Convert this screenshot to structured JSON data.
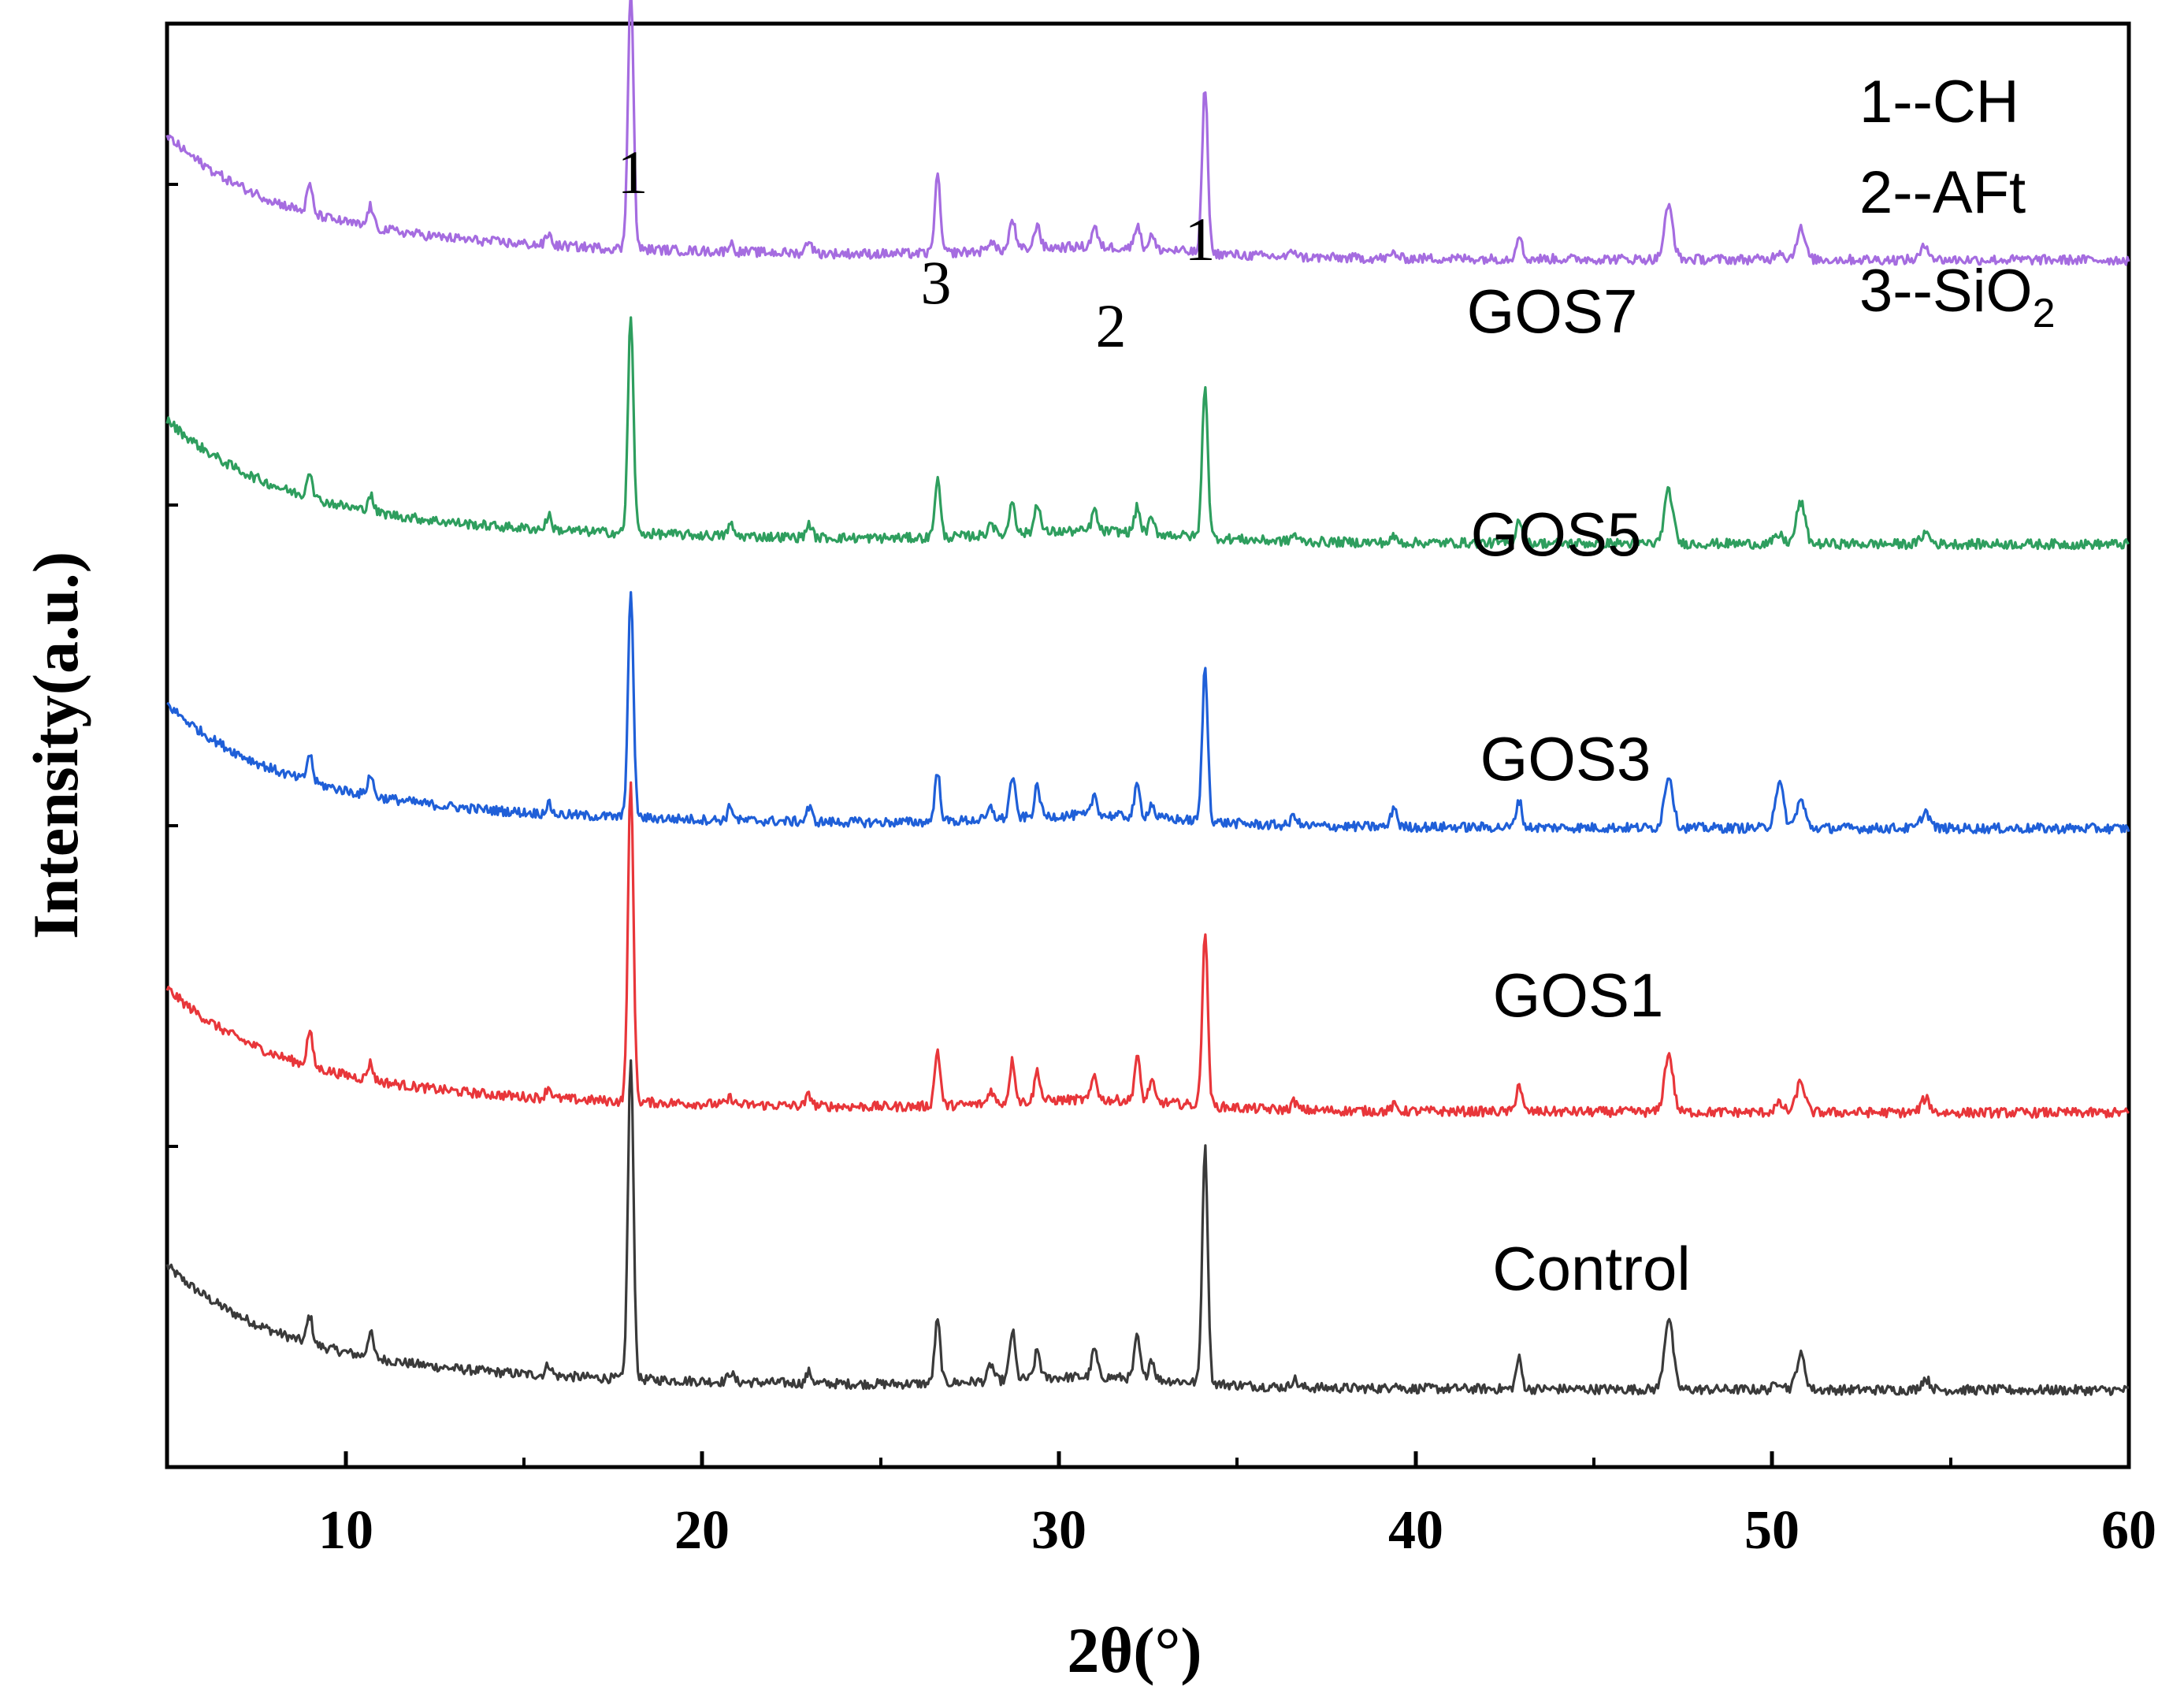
{
  "chart_data": {
    "type": "line",
    "title": "",
    "xlabel": "2θ(°)",
    "ylabel": "Intensity(a.u.)",
    "xlim": [
      5,
      60
    ],
    "xticks": [
      10,
      20,
      30,
      40,
      50,
      60
    ],
    "xtick_labels": [
      "10",
      "20",
      "30",
      "40",
      "50",
      "60"
    ],
    "y_ticks_shown": false,
    "peaks_2theta": [
      9.0,
      10.7,
      15.7,
      18.0,
      20.8,
      23.0,
      26.6,
      28.1,
      28.7,
      29.4,
      31.0,
      32.2,
      32.6,
      34.1,
      36.6,
      39.4,
      42.9,
      47.1,
      50.2,
      50.8,
      54.3
    ],
    "series": [
      {
        "name": "Control",
        "color": "#3a3a3a",
        "baseline": 0.0,
        "peak_heights": [
          0.2,
          0.18,
          0.08,
          2.3,
          0.07,
          0.08,
          0.45,
          0.12,
          0.35,
          0.2,
          0.2,
          0.3,
          0.15,
          1.7,
          0.06,
          0.04,
          0.22,
          0.52,
          0.06,
          0.25,
          0.08
        ]
      },
      {
        "name": "GOS1",
        "color": "#e8363a",
        "baseline": 2.0,
        "peak_heights": [
          0.25,
          0.12,
          0.08,
          2.3,
          0.05,
          0.08,
          0.4,
          0.1,
          0.3,
          0.22,
          0.18,
          0.32,
          0.15,
          1.25,
          0.06,
          0.04,
          0.2,
          0.42,
          0.06,
          0.22,
          0.1
        ]
      },
      {
        "name": "GOS3",
        "color": "#1f5fd8",
        "baseline": 4.05,
        "peak_heights": [
          0.2,
          0.15,
          0.07,
          1.6,
          0.1,
          0.1,
          0.35,
          0.08,
          0.3,
          0.22,
          0.15,
          0.22,
          0.1,
          1.1,
          0.08,
          0.15,
          0.2,
          0.38,
          0.32,
          0.2,
          0.12
        ]
      },
      {
        "name": "GOS5",
        "color": "#2e9e5e",
        "baseline": 6.1,
        "peak_heights": [
          0.2,
          0.12,
          0.1,
          1.55,
          0.08,
          0.1,
          0.42,
          0.1,
          0.25,
          0.22,
          0.15,
          0.18,
          0.1,
          1.1,
          0.05,
          0.04,
          0.18,
          0.38,
          0.06,
          0.3,
          0.08
        ]
      },
      {
        "name": "GOS7",
        "color": "#a56ce0",
        "baseline": 8.15,
        "peak_heights": [
          0.2,
          0.15,
          0.08,
          1.9,
          0.06,
          0.1,
          0.55,
          0.08,
          0.22,
          0.18,
          0.15,
          0.18,
          0.1,
          1.2,
          0.05,
          0.04,
          0.18,
          0.38,
          0.06,
          0.22,
          0.1
        ]
      }
    ],
    "peak_annotations": [
      {
        "label": "1",
        "x": 18.0
      },
      {
        "label": "3",
        "x": 26.6
      },
      {
        "label": "2",
        "x": 31.2
      },
      {
        "label": "1",
        "x": 34.1
      }
    ],
    "legend": {
      "placement": "top-right",
      "entries": [
        "1--CH",
        "2--AFt",
        "3--SiO"
      ],
      "subscript_note": "2"
    }
  }
}
